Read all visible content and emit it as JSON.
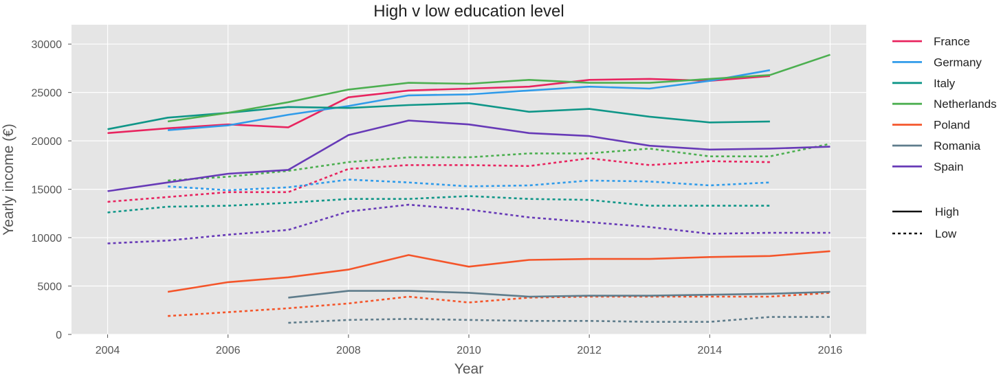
{
  "chart_data": {
    "type": "line",
    "title": "High v low education level",
    "xlabel": "Year",
    "ylabel": "Yearly income (€)",
    "xlim": [
      2003.4,
      2016.6
    ],
    "ylim": [
      0,
      32000
    ],
    "xticks": [
      2004,
      2006,
      2008,
      2010,
      2012,
      2014,
      2016
    ],
    "yticks": [
      0,
      5000,
      10000,
      15000,
      20000,
      25000,
      30000
    ],
    "grid": true,
    "legend_position": "right",
    "colors": {
      "France": "#e8245f",
      "Germany": "#2f9bea",
      "Italy": "#0f9688",
      "Netherlands": "#4caf50",
      "Poland": "#f4552a",
      "Romania": "#5e7c8b",
      "Spain": "#673ab7"
    },
    "legend": {
      "countries": [
        "France",
        "Germany",
        "Italy",
        "Netherlands",
        "Poland",
        "Romania",
        "Spain"
      ],
      "styles": [
        {
          "label": "High",
          "dash": "solid"
        },
        {
          "label": "Low",
          "dash": "dashed"
        }
      ]
    },
    "series": [
      {
        "name": "France",
        "level": "High",
        "x": [
          2004,
          2005,
          2006,
          2007,
          2008,
          2009,
          2010,
          2011,
          2012,
          2013,
          2014,
          2015
        ],
        "y": [
          20800,
          21300,
          21700,
          21400,
          24500,
          25200,
          25400,
          25600,
          26300,
          26400,
          26200,
          26700
        ]
      },
      {
        "name": "France",
        "level": "Low",
        "x": [
          2004,
          2005,
          2006,
          2007,
          2008,
          2009,
          2010,
          2011,
          2012,
          2013,
          2014,
          2015
        ],
        "y": [
          13700,
          14200,
          14700,
          14700,
          17100,
          17500,
          17500,
          17400,
          18200,
          17500,
          17900,
          17800
        ]
      },
      {
        "name": "Germany",
        "level": "High",
        "x": [
          2005,
          2006,
          2007,
          2008,
          2009,
          2010,
          2011,
          2012,
          2013,
          2014,
          2015
        ],
        "y": [
          21100,
          21600,
          22700,
          23600,
          24700,
          24800,
          25200,
          25600,
          25400,
          26200,
          27300
        ]
      },
      {
        "name": "Germany",
        "level": "Low",
        "x": [
          2005,
          2006,
          2007,
          2008,
          2009,
          2010,
          2011,
          2012,
          2013,
          2014,
          2015
        ],
        "y": [
          15300,
          14900,
          15200,
          16000,
          15700,
          15300,
          15400,
          15900,
          15800,
          15400,
          15700
        ]
      },
      {
        "name": "Italy",
        "level": "High",
        "x": [
          2004,
          2005,
          2006,
          2007,
          2008,
          2009,
          2010,
          2011,
          2012,
          2013,
          2014,
          2015
        ],
        "y": [
          21200,
          22400,
          22900,
          23500,
          23400,
          23700,
          23900,
          23000,
          23300,
          22500,
          21900,
          22000
        ]
      },
      {
        "name": "Italy",
        "level": "Low",
        "x": [
          2004,
          2005,
          2006,
          2007,
          2008,
          2009,
          2010,
          2011,
          2012,
          2013,
          2014,
          2015
        ],
        "y": [
          12600,
          13200,
          13300,
          13600,
          14000,
          14000,
          14300,
          14000,
          13900,
          13300,
          13300,
          13300
        ]
      },
      {
        "name": "Netherlands",
        "level": "High",
        "x": [
          2005,
          2006,
          2007,
          2008,
          2009,
          2010,
          2011,
          2012,
          2013,
          2014,
          2015,
          2016
        ],
        "y": [
          22000,
          22900,
          24000,
          25300,
          26000,
          25900,
          26300,
          26000,
          26000,
          26400,
          26800,
          28900
        ]
      },
      {
        "name": "Netherlands",
        "level": "Low",
        "x": [
          2005,
          2006,
          2007,
          2008,
          2009,
          2010,
          2011,
          2012,
          2013,
          2014,
          2015,
          2016
        ],
        "y": [
          15900,
          16300,
          16900,
          17800,
          18300,
          18300,
          18700,
          18700,
          19200,
          18400,
          18400,
          19700
        ]
      },
      {
        "name": "Poland",
        "level": "High",
        "x": [
          2005,
          2006,
          2007,
          2008,
          2009,
          2010,
          2011,
          2012,
          2013,
          2014,
          2015,
          2016
        ],
        "y": [
          4400,
          5400,
          5900,
          6700,
          8200,
          7000,
          7700,
          7800,
          7800,
          8000,
          8100,
          8600
        ]
      },
      {
        "name": "Poland",
        "level": "Low",
        "x": [
          2005,
          2006,
          2007,
          2008,
          2009,
          2010,
          2011,
          2012,
          2013,
          2014,
          2015,
          2016
        ],
        "y": [
          1900,
          2300,
          2700,
          3200,
          3900,
          3300,
          3800,
          3900,
          3900,
          3900,
          3900,
          4300
        ]
      },
      {
        "name": "Romania",
        "level": "High",
        "x": [
          2007,
          2008,
          2009,
          2010,
          2011,
          2012,
          2013,
          2014,
          2015,
          2016
        ],
        "y": [
          3800,
          4500,
          4500,
          4300,
          3900,
          4000,
          4000,
          4100,
          4200,
          4400
        ]
      },
      {
        "name": "Romania",
        "level": "Low",
        "x": [
          2007,
          2008,
          2009,
          2010,
          2011,
          2012,
          2013,
          2014,
          2015,
          2016
        ],
        "y": [
          1200,
          1500,
          1600,
          1500,
          1400,
          1400,
          1300,
          1300,
          1800,
          1800
        ]
      },
      {
        "name": "Spain",
        "level": "High",
        "x": [
          2004,
          2005,
          2006,
          2007,
          2008,
          2009,
          2010,
          2011,
          2012,
          2013,
          2014,
          2015,
          2016
        ],
        "y": [
          14800,
          15700,
          16600,
          17000,
          20600,
          22100,
          21700,
          20800,
          20500,
          19500,
          19100,
          19200,
          19400
        ]
      },
      {
        "name": "Spain",
        "level": "Low",
        "x": [
          2004,
          2005,
          2006,
          2007,
          2008,
          2009,
          2010,
          2011,
          2012,
          2013,
          2014,
          2015,
          2016
        ],
        "y": [
          9400,
          9700,
          10300,
          10800,
          12700,
          13400,
          12900,
          12100,
          11600,
          11100,
          10400,
          10500,
          10500
        ]
      }
    ]
  }
}
